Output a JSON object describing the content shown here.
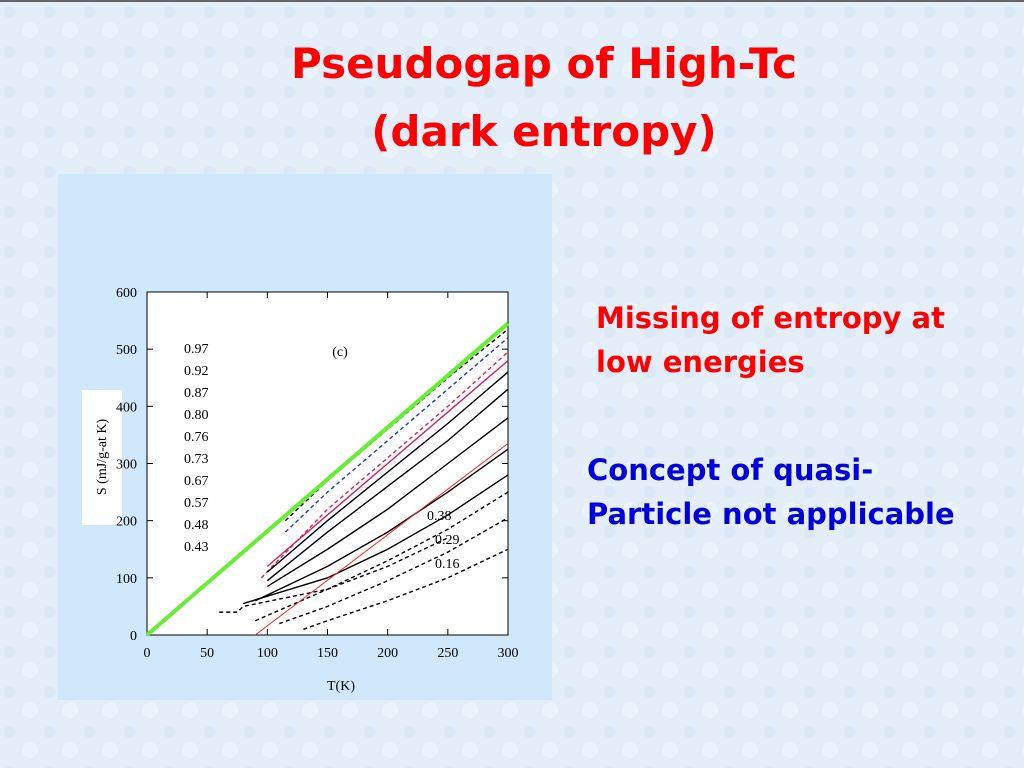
{
  "header": {
    "title_lines": [
      "Pseudogap of High-Tc",
      "(dark entropy)"
    ]
  },
  "points": [
    {
      "lines": [
        "Missing of entropy at",
        "low energies"
      ],
      "color": "#ff0000"
    },
    {
      "lines": [
        "Concept of quasi-",
        "Particle not applicable"
      ],
      "color": "#0000dd"
    }
  ],
  "chart_data": {
    "type": "line",
    "annotation": "(c)",
    "x_label": "T(K)",
    "y_label": "S    (mJ/g-at K)",
    "xlim": [
      0,
      300
    ],
    "xticks": [
      0,
      50,
      100,
      150,
      200,
      250,
      300
    ],
    "ylim": [
      0,
      600
    ],
    "yticks": [
      0,
      100,
      200,
      300,
      400,
      500,
      600
    ],
    "series": [
      {
        "name": "0.97",
        "color": "#000000",
        "dash": true,
        "x": [
          115,
          150,
          200,
          250,
          300
        ],
        "values": [
          200,
          270,
          360,
          450,
          535
        ]
      },
      {
        "name": "0.92",
        "color": "#2233dd",
        "dash": true,
        "x": [
          115,
          150,
          200,
          250,
          300
        ],
        "values": [
          180,
          250,
          340,
          430,
          520
        ]
      },
      {
        "name": "0.87",
        "color": "#dd2244",
        "dash": true,
        "x": [
          95,
          150,
          200,
          250,
          300
        ],
        "values": [
          100,
          220,
          310,
          400,
          495
        ]
      },
      {
        "name": "0.80",
        "color": "#cc2266",
        "dash": false,
        "x": [
          100,
          150,
          200,
          250,
          300
        ],
        "values": [
          120,
          210,
          300,
          390,
          480
        ]
      },
      {
        "name": "0.76",
        "color": "#000000",
        "dash": false,
        "x": [
          100,
          150,
          200,
          250,
          300
        ],
        "values": [
          110,
          200,
          285,
          370,
          460
        ]
      },
      {
        "name": "0.73",
        "color": "#000000",
        "dash": false,
        "x": [
          100,
          150,
          200,
          250,
          300
        ],
        "values": [
          95,
          180,
          260,
          340,
          430
        ]
      },
      {
        "name": "0.67",
        "color": "#000000",
        "dash": false,
        "x": [
          100,
          150,
          200,
          250,
          300
        ],
        "values": [
          85,
          150,
          220,
          300,
          380
        ]
      },
      {
        "name": "0.57",
        "color": "#000000",
        "dash": false,
        "x": [
          90,
          150,
          200,
          250,
          300
        ],
        "values": [
          60,
          120,
          180,
          250,
          325
        ]
      },
      {
        "name": "0.48",
        "color": "#000000",
        "dash": false,
        "x": [
          80,
          150,
          200,
          250,
          300
        ],
        "values": [
          55,
          100,
          150,
          210,
          280
        ]
      },
      {
        "name": "0.43",
        "color": "#000000",
        "dash": true,
        "x": [
          60,
          75,
          80,
          150,
          200,
          250
        ],
        "values": [
          40,
          40,
          50,
          80,
          120,
          170
        ]
      },
      {
        "name": "0.38",
        "color": "#000000",
        "dash": true,
        "x": [
          90,
          150,
          200,
          250,
          300
        ],
        "values": [
          25,
          80,
          130,
          185,
          250
        ]
      },
      {
        "name": "0.29",
        "color": "#000000",
        "dash": true,
        "x": [
          110,
          150,
          200,
          250,
          300
        ],
        "values": [
          20,
          50,
          95,
          145,
          205
        ]
      },
      {
        "name": "0.16",
        "color": "#000000",
        "dash": true,
        "x": [
          130,
          150,
          200,
          250,
          300
        ],
        "values": [
          10,
          25,
          60,
          100,
          150
        ]
      }
    ],
    "lines": [
      {
        "color": "#66ee33",
        "x": [
          0,
          300
        ],
        "values": [
          0,
          545
        ]
      },
      {
        "color": "#ee2222",
        "x": [
          90,
          300
        ],
        "values": [
          0,
          335
        ]
      }
    ]
  }
}
